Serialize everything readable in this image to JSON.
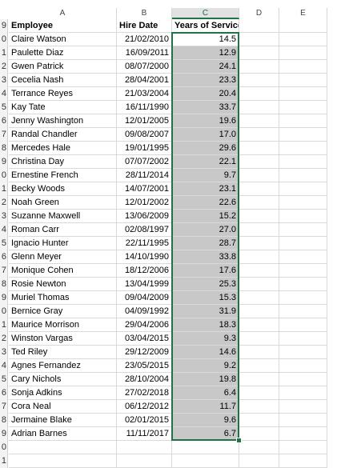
{
  "columns": [
    "A",
    "B",
    "C",
    "D",
    "E"
  ],
  "header_row_number": "9",
  "headers": {
    "employee": "Employee",
    "hire_date": "Hire Date",
    "years": "Years of Service"
  },
  "rows": [
    {
      "num": "0",
      "name": "Claire Watson",
      "date": "21/02/2010",
      "years": "14.5"
    },
    {
      "num": "1",
      "name": "Paulette Diaz",
      "date": "16/09/2011",
      "years": "12.9"
    },
    {
      "num": "2",
      "name": "Gwen Patrick",
      "date": "08/07/2000",
      "years": "24.1"
    },
    {
      "num": "3",
      "name": "Cecelia Nash",
      "date": "28/04/2001",
      "years": "23.3"
    },
    {
      "num": "4",
      "name": "Terrance Reyes",
      "date": "21/03/2004",
      "years": "20.4"
    },
    {
      "num": "5",
      "name": "Kay Tate",
      "date": "16/11/1990",
      "years": "33.7"
    },
    {
      "num": "6",
      "name": "Jenny Washington",
      "date": "12/01/2005",
      "years": "19.6"
    },
    {
      "num": "7",
      "name": "Randal Chandler",
      "date": "09/08/2007",
      "years": "17.0"
    },
    {
      "num": "8",
      "name": "Mercedes Hale",
      "date": "19/01/1995",
      "years": "29.6"
    },
    {
      "num": "9",
      "name": "Christina Day",
      "date": "07/07/2002",
      "years": "22.1"
    },
    {
      "num": "0",
      "name": "Ernestine French",
      "date": "28/11/2014",
      "years": "9.7"
    },
    {
      "num": "1",
      "name": "Becky Woods",
      "date": "14/07/2001",
      "years": "23.1"
    },
    {
      "num": "2",
      "name": "Noah Green",
      "date": "12/01/2002",
      "years": "22.6"
    },
    {
      "num": "3",
      "name": "Suzanne Maxwell",
      "date": "13/06/2009",
      "years": "15.2"
    },
    {
      "num": "4",
      "name": "Roman Carr",
      "date": "02/08/1997",
      "years": "27.0"
    },
    {
      "num": "5",
      "name": "Ignacio Hunter",
      "date": "22/11/1995",
      "years": "28.7"
    },
    {
      "num": "6",
      "name": "Glenn Meyer",
      "date": "14/10/1990",
      "years": "33.8"
    },
    {
      "num": "7",
      "name": "Monique Cohen",
      "date": "18/12/2006",
      "years": "17.6"
    },
    {
      "num": "8",
      "name": "Rosie Newton",
      "date": "13/04/1999",
      "years": "25.3"
    },
    {
      "num": "9",
      "name": "Muriel Thomas",
      "date": "09/04/2009",
      "years": "15.3"
    },
    {
      "num": "0",
      "name": "Bernice Gray",
      "date": "04/09/1992",
      "years": "31.9"
    },
    {
      "num": "1",
      "name": "Maurice Morrison",
      "date": "29/04/2006",
      "years": "18.3"
    },
    {
      "num": "2",
      "name": "Winston Vargas",
      "date": "03/04/2015",
      "years": "9.3"
    },
    {
      "num": "3",
      "name": "Ted Riley",
      "date": "29/12/2009",
      "years": "14.6"
    },
    {
      "num": "4",
      "name": "Agnes Fernandez",
      "date": "23/05/2015",
      "years": "9.2"
    },
    {
      "num": "5",
      "name": "Cary Nichols",
      "date": "28/10/2004",
      "years": "19.8"
    },
    {
      "num": "6",
      "name": "Sonja Adkins",
      "date": "27/02/2018",
      "years": "6.4"
    },
    {
      "num": "7",
      "name": "Cora Neal",
      "date": "06/12/2012",
      "years": "11.7"
    },
    {
      "num": "8",
      "name": "Jermaine Blake",
      "date": "02/01/2015",
      "years": "9.6"
    },
    {
      "num": "9",
      "name": "Adrian Barnes",
      "date": "11/11/2017",
      "years": "6.7"
    }
  ],
  "trailing_rows": [
    "0",
    "1"
  ],
  "selection": {
    "column": "C",
    "accent_color": "#217346",
    "fill_color": "#c8c8c8"
  }
}
